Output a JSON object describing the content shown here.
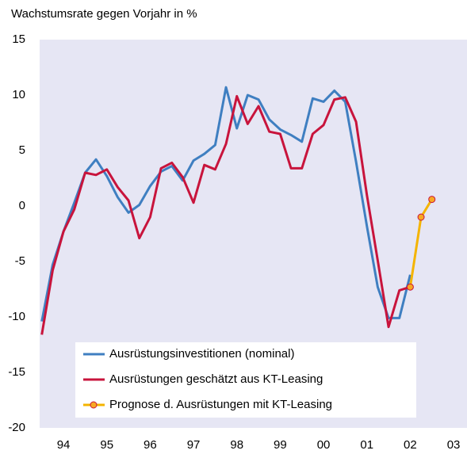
{
  "chart_data": {
    "type": "line",
    "title": "Wachstumsrate gegen Vorjahr in %",
    "x": [
      1994,
      1994.25,
      1994.5,
      1994.75,
      1995,
      1995.25,
      1995.5,
      1995.75,
      1996,
      1996.25,
      1996.5,
      1996.75,
      1997,
      1997.25,
      1997.5,
      1997.75,
      1998,
      1998.25,
      1998.5,
      1998.75,
      1999,
      1999.25,
      1999.5,
      1999.75,
      2000,
      2000.25,
      2000.5,
      2000.75,
      2001,
      2001.25,
      2001.5,
      2001.75,
      2002,
      2002.25,
      2002.5,
      2002.75,
      2003
    ],
    "series": [
      {
        "name": "Ausrüstungsinvestitionen (nominal)",
        "color": "#3f7fc1",
        "values": [
          -10.4,
          -5.3,
          -2.3,
          0.3,
          3.0,
          4.2,
          2.7,
          0.8,
          -0.6,
          0.1,
          1.8,
          3.1,
          3.6,
          2.3,
          4.1,
          4.7,
          5.5,
          10.7,
          7.0,
          10.0,
          9.6,
          7.8,
          6.9,
          6.4,
          5.8,
          9.7,
          9.4,
          10.4,
          9.4,
          4.0,
          -1.8,
          -7.3,
          -10.1,
          -10.1,
          -6.2,
          null,
          null
        ]
      },
      {
        "name": "Ausrüstungen geschätzt aus KT-Leasing",
        "color": "#c8143c",
        "values": [
          -11.6,
          -5.8,
          -2.3,
          -0.3,
          3.0,
          2.8,
          3.3,
          1.7,
          0.5,
          -2.9,
          -1.0,
          3.4,
          3.9,
          2.6,
          0.3,
          3.7,
          3.3,
          5.6,
          9.9,
          7.4,
          9.0,
          6.7,
          6.5,
          3.4,
          3.4,
          6.5,
          7.3,
          9.6,
          9.8,
          7.6,
          1.0,
          -4.9,
          -10.9,
          -7.6,
          -7.3,
          null,
          null
        ]
      },
      {
        "name": "Prognose d. Ausrüstungen mit KT-Leasing",
        "color": "#f4b400",
        "marker": true,
        "values": [
          null,
          null,
          null,
          null,
          null,
          null,
          null,
          null,
          null,
          null,
          null,
          null,
          null,
          null,
          null,
          null,
          null,
          null,
          null,
          null,
          null,
          null,
          null,
          null,
          null,
          null,
          null,
          null,
          null,
          null,
          null,
          null,
          null,
          null,
          -7.3,
          -1.0,
          0.6
        ]
      }
    ],
    "xlim": [
      1993.95,
      2003.81
    ],
    "xticks": [
      {
        "value": 1994.5,
        "label": "94"
      },
      {
        "value": 1995.5,
        "label": "95"
      },
      {
        "value": 1996.5,
        "label": "96"
      },
      {
        "value": 1997.5,
        "label": "97"
      },
      {
        "value": 1998.5,
        "label": "98"
      },
      {
        "value": 1999.5,
        "label": "99"
      },
      {
        "value": 2000.5,
        "label": "00"
      },
      {
        "value": 2001.5,
        "label": "01"
      },
      {
        "value": 2002.5,
        "label": "02"
      },
      {
        "value": 2003.5,
        "label": "03"
      }
    ],
    "ylim": [
      -20,
      15
    ],
    "yticks": [
      15,
      10,
      5,
      0,
      -5,
      -10,
      -15,
      -20
    ],
    "grid": false,
    "background": "#e6e6f4",
    "marker_color": "#f7a823",
    "legend": "bottom"
  }
}
